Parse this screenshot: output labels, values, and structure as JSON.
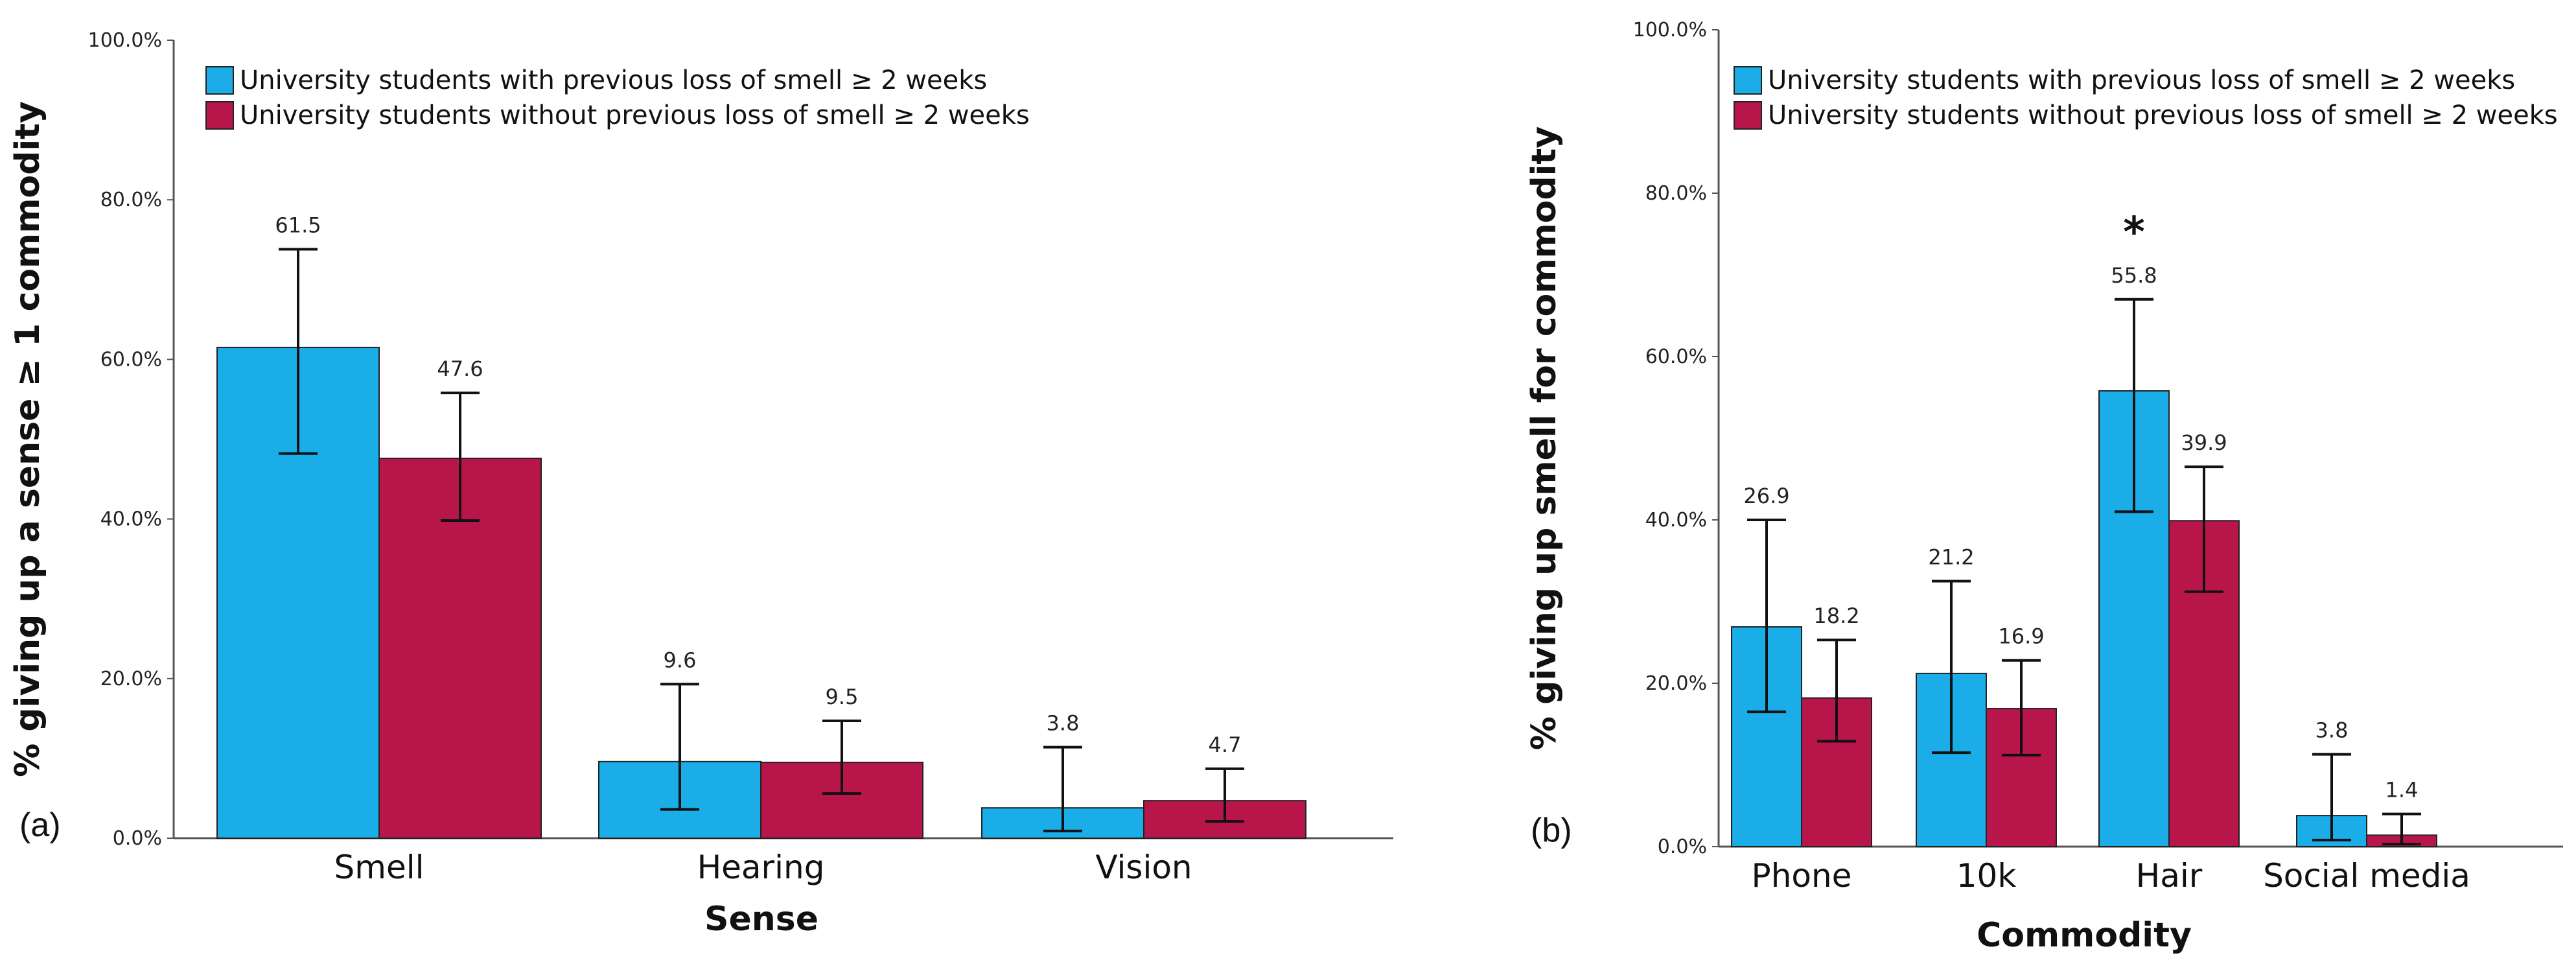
{
  "colors": {
    "with_loss": "#1AADE8",
    "without_loss": "#B8164A",
    "axis": "#555555",
    "errorbar": "#111111"
  },
  "chart_data": [
    {
      "type": "bar",
      "panel_label": "(a)",
      "xlabel": "Sense",
      "ylabel": "% giving up a sense ≥ 1 commodity",
      "ylim": [
        0,
        100
      ],
      "yticks": [
        "0.0%",
        "20.0%",
        "40.0%",
        "60.0%",
        "80.0%",
        "100.0%"
      ],
      "ytick_values": [
        0,
        20,
        40,
        60,
        80,
        100
      ],
      "categories": [
        "Smell",
        "Hearing",
        "Vision"
      ],
      "legend_position": "top-left",
      "series": [
        {
          "name": "University students with previous loss of smell ≥ 2 weeks",
          "values": [
            61.5,
            9.6,
            3.8
          ],
          "labels": [
            "61.5",
            "9.6",
            "3.8"
          ],
          "err_low": [
            48.2,
            3.6,
            0.9
          ],
          "err_high": [
            73.8,
            19.3,
            11.4
          ]
        },
        {
          "name": "University students without previous loss of smell ≥ 2 weeks",
          "values": [
            47.6,
            9.5,
            4.7
          ],
          "labels": [
            "47.6",
            "9.5",
            "4.7"
          ],
          "err_low": [
            39.8,
            5.6,
            2.1
          ],
          "err_high": [
            55.8,
            14.7,
            8.7
          ]
        }
      ]
    },
    {
      "type": "bar",
      "panel_label": "(b)",
      "xlabel": "Commodity",
      "ylabel": "% giving up smell for commodity",
      "ylim": [
        0,
        100
      ],
      "yticks": [
        "0.0%",
        "20.0%",
        "40.0%",
        "60.0%",
        "80.0%",
        "100.0%"
      ],
      "ytick_values": [
        0,
        20,
        40,
        60,
        80,
        100
      ],
      "categories": [
        "Phone",
        "10k",
        "Hair",
        "Social media"
      ],
      "legend_position": "top-right",
      "significance": [
        {
          "category": "Hair",
          "marker": "*"
        }
      ],
      "series": [
        {
          "name": "University students with previous loss of smell ≥ 2 weeks",
          "values": [
            26.9,
            21.2,
            55.8,
            3.8
          ],
          "labels": [
            "26.9",
            "21.2",
            "55.8",
            "3.8"
          ],
          "err_low": [
            16.5,
            11.5,
            41.0,
            0.8
          ],
          "err_high": [
            40.0,
            32.5,
            67.0,
            11.3
          ]
        },
        {
          "name": "University students without previous loss of smell ≥ 2 weeks",
          "values": [
            18.2,
            16.9,
            39.9,
            1.4
          ],
          "labels": [
            "18.2",
            "16.9",
            "39.9",
            "1.4"
          ],
          "err_low": [
            12.9,
            11.2,
            31.2,
            0.3
          ],
          "err_high": [
            25.3,
            22.8,
            46.5,
            4.0
          ]
        }
      ]
    }
  ]
}
